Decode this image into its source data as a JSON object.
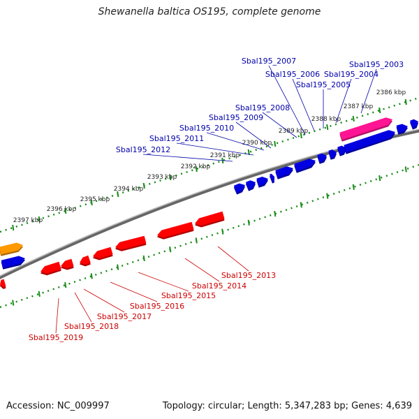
{
  "title": "Shewanella baltica OS195, complete genome",
  "footer": {
    "accession": "Accession: NC_009997",
    "summary": "Topology: circular; Length: 5,347,283 bp; Genes: 4,639"
  },
  "colors": {
    "backbone": "#888888",
    "forward_gene": "#0000e0",
    "reverse_gene": "#ff0000",
    "highlight_gene": "#ff1493",
    "other_gene": "#ff9900",
    "forward_label": "#0000aa",
    "reverse_label": "#cc0000",
    "ticks": "#1a8c1a"
  },
  "ticks": [
    {
      "label": "2386 kbp"
    },
    {
      "label": "2387 kbp"
    },
    {
      "label": "2388 kbp"
    },
    {
      "label": "2389 kbp"
    },
    {
      "label": "2390 kbp"
    },
    {
      "label": "2391 kbp"
    },
    {
      "label": "2392 kbp"
    },
    {
      "label": "2393 kbp"
    },
    {
      "label": "2394 kbp"
    },
    {
      "label": "2395 kbp"
    },
    {
      "label": "2396 kbp"
    },
    {
      "label": "2397 kbp"
    }
  ],
  "forward_genes": [
    "Sbal195_2003",
    "Sbal195_2004",
    "Sbal195_2005",
    "Sbal195_2006",
    "Sbal195_2007",
    "Sbal195_2008",
    "Sbal195_2009",
    "Sbal195_2010",
    "Sbal195_2011",
    "Sbal195_2012"
  ],
  "reverse_genes": [
    "Sbal195_2013",
    "Sbal195_2014",
    "Sbal195_2015",
    "Sbal195_2016",
    "Sbal195_2017",
    "Sbal195_2018",
    "Sbal195_2019"
  ]
}
